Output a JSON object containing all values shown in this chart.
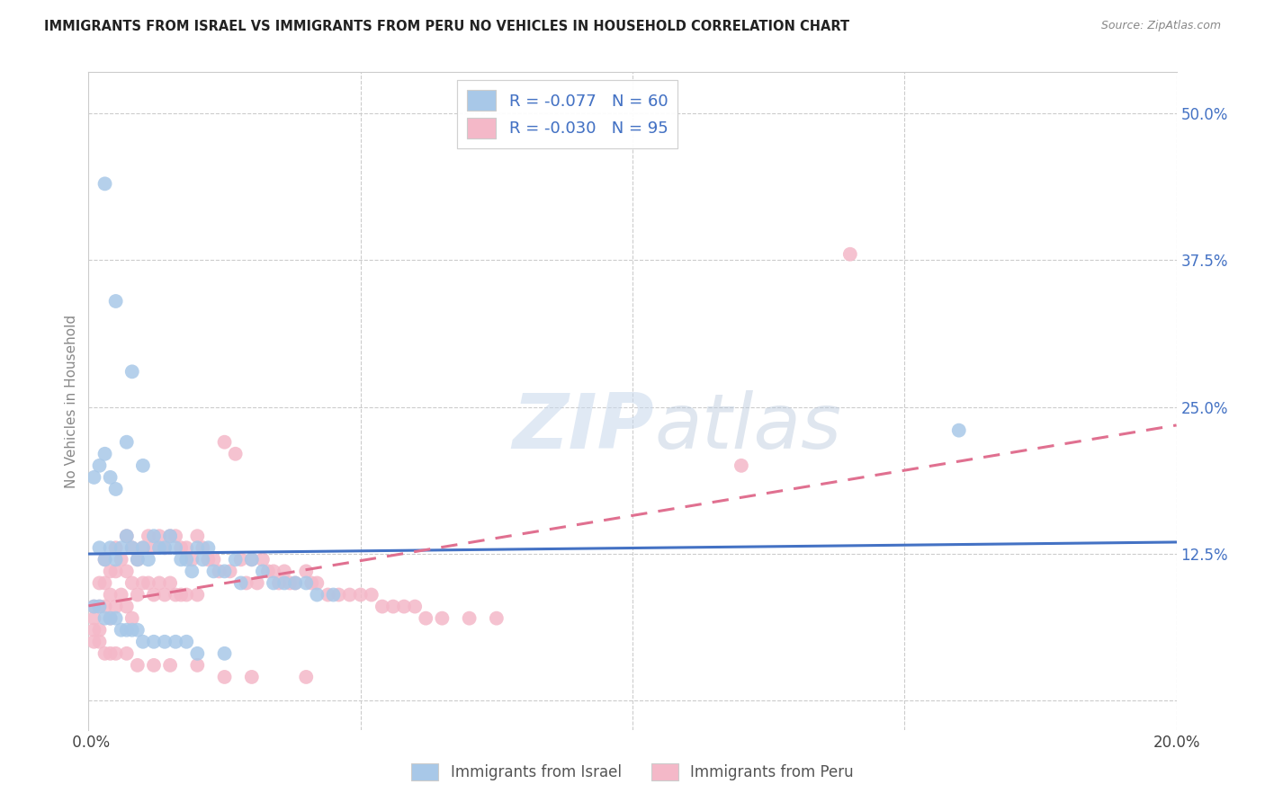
{
  "title": "IMMIGRANTS FROM ISRAEL VS IMMIGRANTS FROM PERU NO VEHICLES IN HOUSEHOLD CORRELATION CHART",
  "source": "Source: ZipAtlas.com",
  "ylabel": "No Vehicles in Household",
  "ytick_labels": [
    "",
    "12.5%",
    "25.0%",
    "37.5%",
    "50.0%"
  ],
  "ytick_values": [
    0.0,
    0.125,
    0.25,
    0.375,
    0.5
  ],
  "xmin": 0.0,
  "xmax": 0.2,
  "ymin": -0.025,
  "ymax": 0.535,
  "r_israel": -0.077,
  "n_israel": 60,
  "r_peru": -0.03,
  "n_peru": 95,
  "color_israel": "#a8c8e8",
  "color_peru": "#f4b8c8",
  "line_color_israel": "#4472c4",
  "line_color_peru": "#e07090",
  "watermark_zip": "ZIP",
  "watermark_atlas": "atlas",
  "legend_r_color": "#4472c4",
  "legend_label1": "Immigrants from Israel",
  "legend_label2": "Immigrants from Peru",
  "israel_x": [
    0.001,
    0.002,
    0.002,
    0.003,
    0.003,
    0.004,
    0.004,
    0.005,
    0.005,
    0.006,
    0.007,
    0.007,
    0.008,
    0.009,
    0.01,
    0.01,
    0.011,
    0.012,
    0.013,
    0.014,
    0.015,
    0.016,
    0.017,
    0.018,
    0.019,
    0.02,
    0.021,
    0.022,
    0.023,
    0.025,
    0.027,
    0.028,
    0.03,
    0.032,
    0.034,
    0.036,
    0.038,
    0.04,
    0.042,
    0.045,
    0.001,
    0.002,
    0.003,
    0.004,
    0.005,
    0.006,
    0.007,
    0.008,
    0.009,
    0.01,
    0.012,
    0.014,
    0.016,
    0.018,
    0.02,
    0.025,
    0.003,
    0.005,
    0.008,
    0.16
  ],
  "israel_y": [
    0.19,
    0.13,
    0.2,
    0.12,
    0.21,
    0.13,
    0.19,
    0.12,
    0.18,
    0.13,
    0.14,
    0.22,
    0.13,
    0.12,
    0.2,
    0.13,
    0.12,
    0.14,
    0.13,
    0.13,
    0.14,
    0.13,
    0.12,
    0.12,
    0.11,
    0.13,
    0.12,
    0.13,
    0.11,
    0.11,
    0.12,
    0.1,
    0.12,
    0.11,
    0.1,
    0.1,
    0.1,
    0.1,
    0.09,
    0.09,
    0.08,
    0.08,
    0.07,
    0.07,
    0.07,
    0.06,
    0.06,
    0.06,
    0.06,
    0.05,
    0.05,
    0.05,
    0.05,
    0.05,
    0.04,
    0.04,
    0.44,
    0.34,
    0.28,
    0.23
  ],
  "peru_x": [
    0.001,
    0.001,
    0.001,
    0.002,
    0.002,
    0.002,
    0.003,
    0.003,
    0.003,
    0.004,
    0.004,
    0.004,
    0.005,
    0.005,
    0.005,
    0.006,
    0.006,
    0.007,
    0.007,
    0.007,
    0.008,
    0.008,
    0.008,
    0.009,
    0.009,
    0.01,
    0.01,
    0.011,
    0.011,
    0.012,
    0.012,
    0.013,
    0.013,
    0.014,
    0.014,
    0.015,
    0.015,
    0.016,
    0.016,
    0.017,
    0.017,
    0.018,
    0.018,
    0.019,
    0.02,
    0.02,
    0.021,
    0.022,
    0.023,
    0.024,
    0.025,
    0.026,
    0.027,
    0.028,
    0.029,
    0.03,
    0.031,
    0.032,
    0.033,
    0.034,
    0.035,
    0.036,
    0.037,
    0.038,
    0.04,
    0.041,
    0.042,
    0.044,
    0.046,
    0.048,
    0.05,
    0.052,
    0.054,
    0.056,
    0.058,
    0.06,
    0.062,
    0.065,
    0.07,
    0.075,
    0.001,
    0.002,
    0.003,
    0.004,
    0.005,
    0.007,
    0.009,
    0.012,
    0.015,
    0.02,
    0.025,
    0.03,
    0.04,
    0.12,
    0.14
  ],
  "peru_y": [
    0.08,
    0.07,
    0.06,
    0.1,
    0.08,
    0.06,
    0.12,
    0.1,
    0.08,
    0.11,
    0.09,
    0.07,
    0.13,
    0.11,
    0.08,
    0.12,
    0.09,
    0.14,
    0.11,
    0.08,
    0.13,
    0.1,
    0.07,
    0.12,
    0.09,
    0.13,
    0.1,
    0.14,
    0.1,
    0.13,
    0.09,
    0.14,
    0.1,
    0.13,
    0.09,
    0.14,
    0.1,
    0.14,
    0.09,
    0.13,
    0.09,
    0.13,
    0.09,
    0.12,
    0.14,
    0.09,
    0.13,
    0.12,
    0.12,
    0.11,
    0.22,
    0.11,
    0.21,
    0.12,
    0.1,
    0.12,
    0.1,
    0.12,
    0.11,
    0.11,
    0.1,
    0.11,
    0.1,
    0.1,
    0.11,
    0.1,
    0.1,
    0.09,
    0.09,
    0.09,
    0.09,
    0.09,
    0.08,
    0.08,
    0.08,
    0.08,
    0.07,
    0.07,
    0.07,
    0.07,
    0.05,
    0.05,
    0.04,
    0.04,
    0.04,
    0.04,
    0.03,
    0.03,
    0.03,
    0.03,
    0.02,
    0.02,
    0.02,
    0.2,
    0.38
  ]
}
